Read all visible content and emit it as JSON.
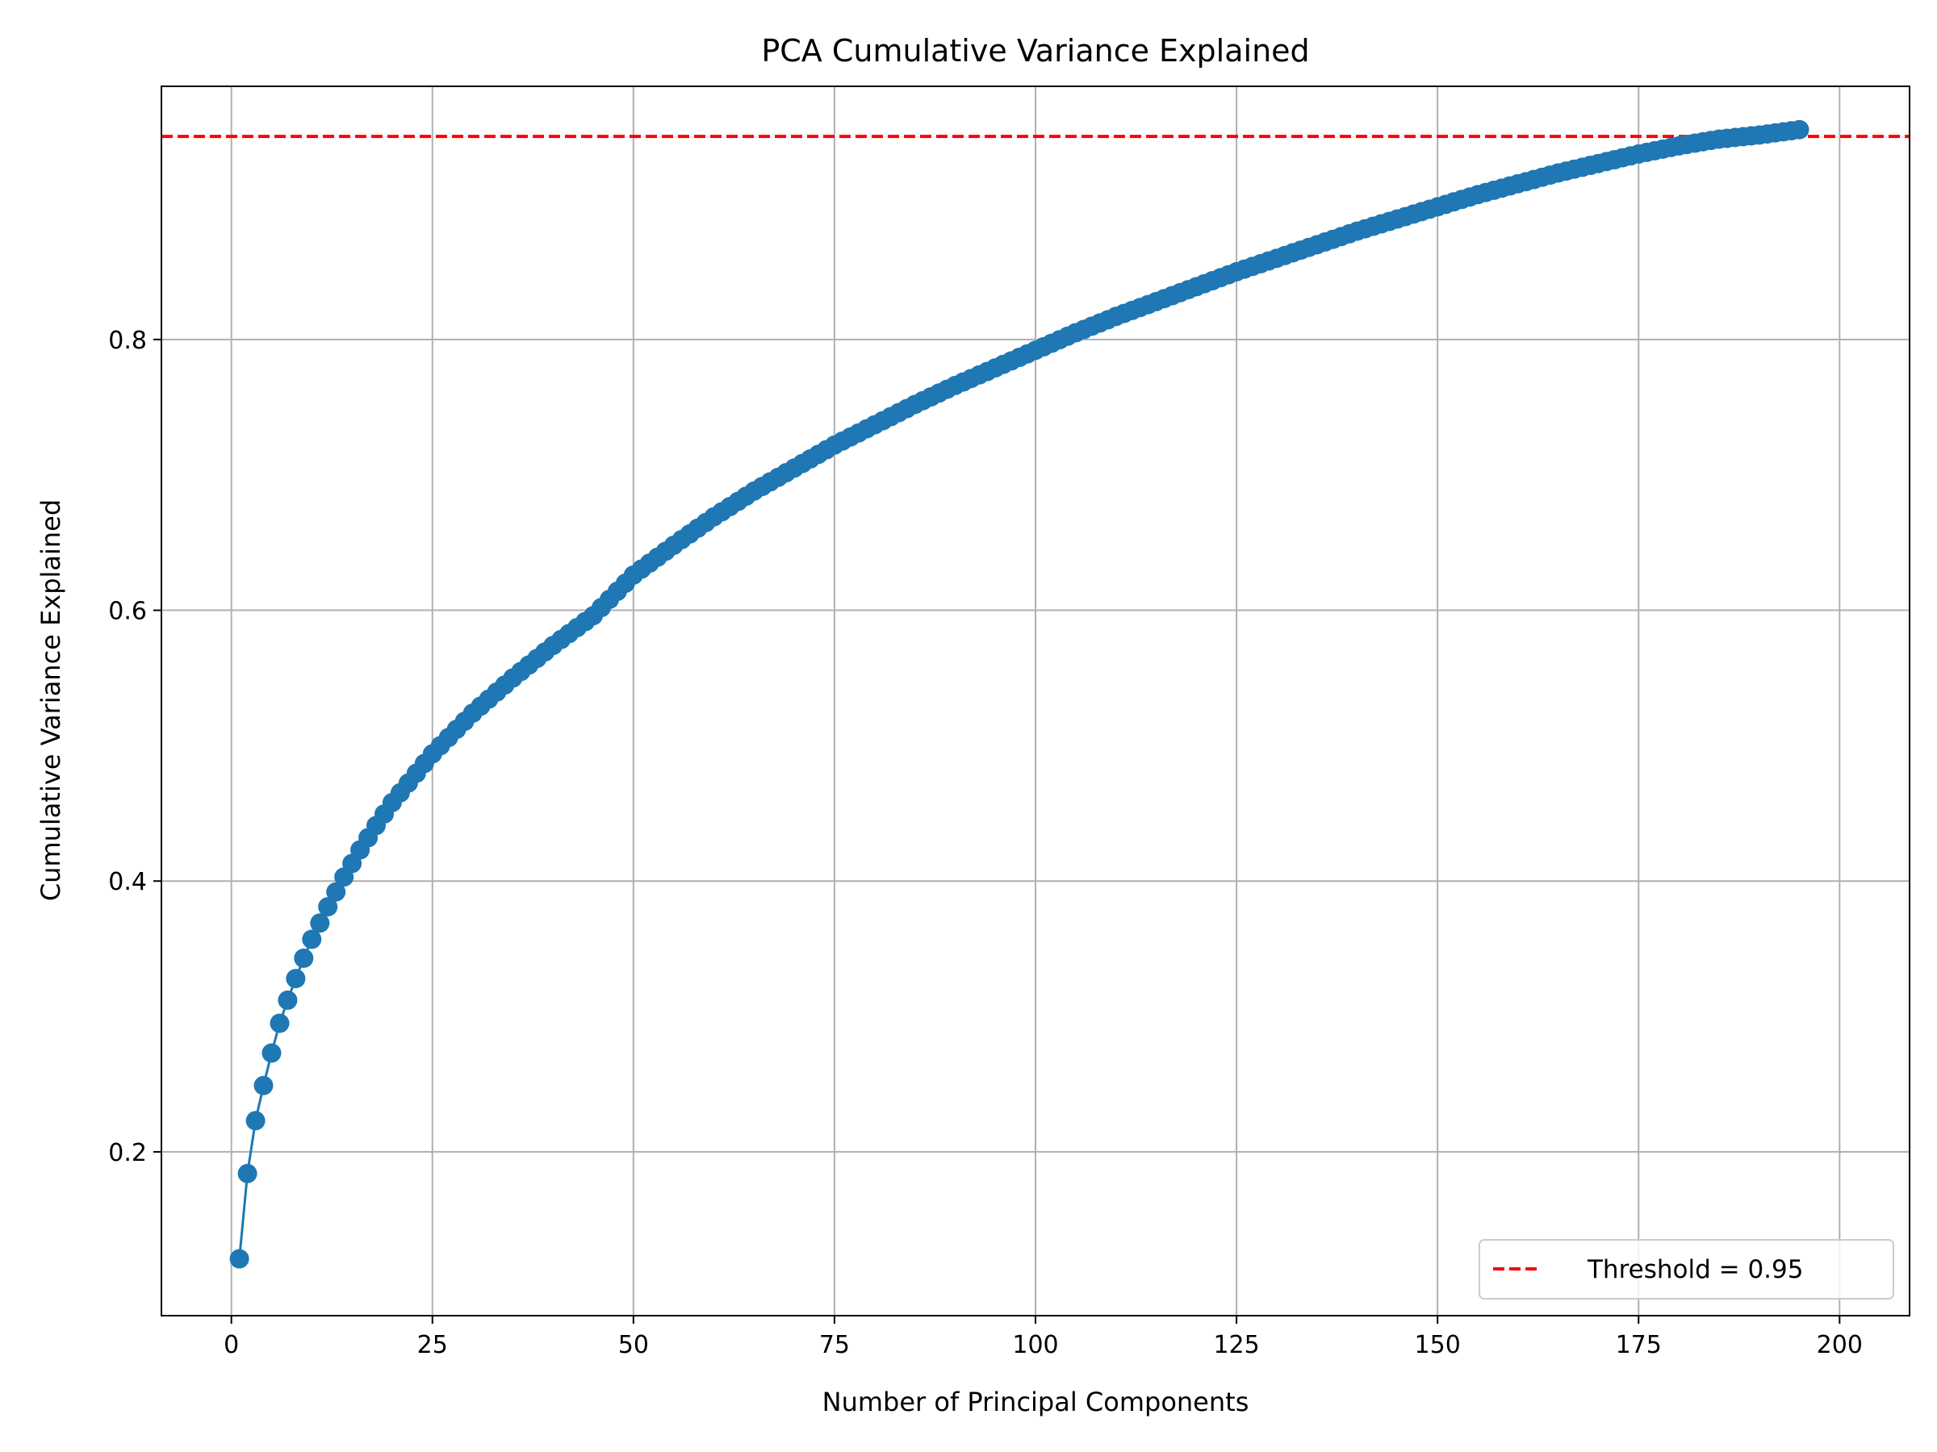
{
  "chart_data": {
    "type": "line",
    "title": "PCA Cumulative Variance Explained",
    "xlabel": "Number of Principal Components",
    "ylabel": "Cumulative Variance Explained",
    "xlim": [
      -8.7,
      208.7
    ],
    "ylim": [
      0.079,
      0.987
    ],
    "xticks": [
      0,
      25,
      50,
      75,
      100,
      125,
      150,
      175,
      200
    ],
    "yticks": [
      0.2,
      0.4,
      0.6,
      0.8
    ],
    "ytick_labels": [
      "0.2",
      "0.4",
      "0.6",
      "0.8"
    ],
    "grid": true,
    "legend_position": "lower-right",
    "series": [
      {
        "name": "",
        "color": "#1f77b4",
        "marker": "circle",
        "x": [
          1,
          2,
          3,
          4,
          5,
          6,
          7,
          8,
          9,
          10,
          12,
          14,
          16,
          18,
          20,
          25,
          30,
          35,
          40,
          45,
          50,
          55,
          60,
          65,
          70,
          75,
          80,
          85,
          90,
          95,
          100,
          105,
          110,
          115,
          120,
          125,
          130,
          135,
          140,
          145,
          150,
          155,
          160,
          165,
          170,
          175,
          180,
          185,
          190,
          195
        ],
        "y": [
          0.121,
          0.184,
          0.223,
          0.249,
          0.273,
          0.295,
          0.312,
          0.328,
          0.343,
          0.357,
          0.381,
          0.403,
          0.423,
          0.441,
          0.458,
          0.494,
          0.524,
          0.55,
          0.574,
          0.596,
          0.626,
          0.648,
          0.669,
          0.688,
          0.705,
          0.722,
          0.737,
          0.752,
          0.766,
          0.779,
          0.792,
          0.805,
          0.817,
          0.828,
          0.839,
          0.85,
          0.86,
          0.87,
          0.88,
          0.889,
          0.898,
          0.907,
          0.915,
          0.923,
          0.93,
          0.937,
          0.943,
          0.948,
          0.951,
          0.955
        ]
      }
    ],
    "threshold": {
      "label": "Threshold = 0.95",
      "value": 0.95,
      "color": "#ff0000",
      "style": "dashed"
    }
  }
}
